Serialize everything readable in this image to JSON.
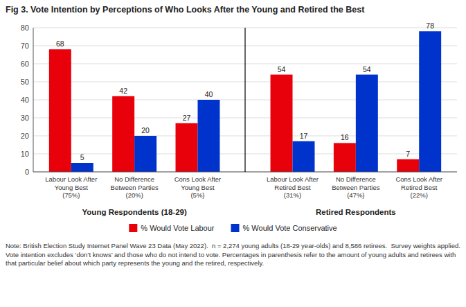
{
  "chart_data": {
    "type": "bar",
    "title": "Fig 3. Vote Intention by Perceptions of Who Looks After the Young and Retired the Best",
    "categories": [
      "Labour Look After\nYoung Best\n(75%)",
      "No Difference\nBetween Parties\n(20%)",
      "Cons Look After\nYoung Best\n(5%)",
      "Labour Look After\nRetired Best\n(31%)",
      "No Difference\nBetween Parties\n(47%)",
      "Cons Look After\nRetired Best\n(22%)"
    ],
    "series": [
      {
        "name": "% Would Vote Labour",
        "color": "#E8000A",
        "values": [
          68,
          42,
          27,
          54,
          16,
          7
        ]
      },
      {
        "name": "% Would Vote Conservative",
        "color": "#0033CC",
        "values": [
          5,
          20,
          40,
          17,
          54,
          78
        ]
      }
    ],
    "ylim": [
      0,
      80
    ],
    "yticks": [
      0,
      10,
      20,
      30,
      40,
      50,
      60,
      70,
      80
    ],
    "grid": true,
    "data_labels": true,
    "legend": "bottom",
    "annotations": [
      "Young Respondents (18-29)",
      "Retired Respondents",
      "Note: British Election Study Internet Panel Wave 23 Data (May 2022).  n = 2,274 young adults (18-29 year-olds) and 8,586 retirees.  Survey weights applied.  Vote intention excludes ‘don’t knows’ and those who do not intend to vote. Percentages in parenthesis refer to the amount of young adults and retirees with that particular belief about which party represents the young and the retired, respectively."
    ]
  }
}
